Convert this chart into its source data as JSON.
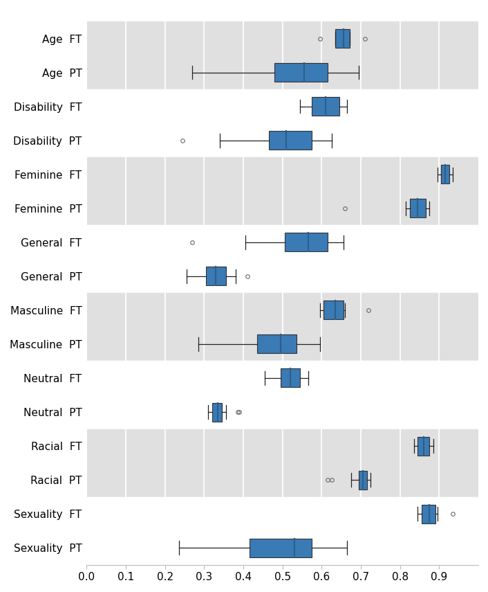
{
  "title": "",
  "xlim": [
    0.0,
    1.0
  ],
  "xticks": [
    0.0,
    0.1,
    0.2,
    0.3,
    0.4,
    0.5,
    0.6,
    0.7,
    0.8,
    0.9
  ],
  "box_color": "#3a7ab5",
  "median_color": "#2c5f8a",
  "whisker_color": "#222222",
  "flier_color": "#666666",
  "bg_shaded": "#e0e0e0",
  "bg_plain": "#ffffff",
  "rows": [
    {
      "label": "Age  FT",
      "q1": 0.635,
      "median": 0.655,
      "q3": 0.672,
      "whislo": 0.635,
      "whishi": 0.672,
      "fliers": [
        0.595,
        0.71
      ],
      "shaded": true
    },
    {
      "label": "Age  PT",
      "q1": 0.48,
      "median": 0.555,
      "q3": 0.615,
      "whislo": 0.27,
      "whishi": 0.695,
      "fliers": [],
      "shaded": true
    },
    {
      "label": "Disability  FT",
      "q1": 0.575,
      "median": 0.61,
      "q3": 0.645,
      "whislo": 0.545,
      "whishi": 0.665,
      "fliers": [],
      "shaded": false
    },
    {
      "label": "Disability  PT",
      "q1": 0.465,
      "median": 0.51,
      "q3": 0.575,
      "whislo": 0.34,
      "whishi": 0.625,
      "fliers": [
        0.245
      ],
      "shaded": false
    },
    {
      "label": "Feminine  FT",
      "q1": 0.905,
      "median": 0.915,
      "q3": 0.925,
      "whislo": 0.895,
      "whishi": 0.935,
      "fliers": [],
      "shaded": true
    },
    {
      "label": "Feminine  PT",
      "q1": 0.825,
      "median": 0.845,
      "q3": 0.865,
      "whislo": 0.815,
      "whishi": 0.875,
      "fliers": [
        0.66
      ],
      "shaded": true
    },
    {
      "label": "General  FT",
      "q1": 0.505,
      "median": 0.565,
      "q3": 0.615,
      "whislo": 0.405,
      "whishi": 0.655,
      "fliers": [
        0.27
      ],
      "shaded": false
    },
    {
      "label": "General  PT",
      "q1": 0.305,
      "median": 0.33,
      "q3": 0.355,
      "whislo": 0.255,
      "whishi": 0.38,
      "fliers": [
        0.41
      ],
      "shaded": false
    },
    {
      "label": "Masculine  FT",
      "q1": 0.605,
      "median": 0.635,
      "q3": 0.655,
      "whislo": 0.595,
      "whishi": 0.66,
      "fliers": [
        0.72
      ],
      "shaded": true
    },
    {
      "label": "Masculine  PT",
      "q1": 0.435,
      "median": 0.495,
      "q3": 0.535,
      "whislo": 0.285,
      "whishi": 0.595,
      "fliers": [],
      "shaded": true
    },
    {
      "label": "Neutral  FT",
      "q1": 0.495,
      "median": 0.52,
      "q3": 0.545,
      "whislo": 0.455,
      "whishi": 0.565,
      "fliers": [],
      "shaded": false
    },
    {
      "label": "Neutral  PT",
      "q1": 0.32,
      "median": 0.335,
      "q3": 0.345,
      "whislo": 0.31,
      "whishi": 0.355,
      "fliers": [
        0.385,
        0.39
      ],
      "shaded": false
    },
    {
      "label": "Racial  FT",
      "q1": 0.845,
      "median": 0.86,
      "q3": 0.875,
      "whislo": 0.835,
      "whishi": 0.885,
      "fliers": [],
      "shaded": true
    },
    {
      "label": "Racial  PT",
      "q1": 0.695,
      "median": 0.705,
      "q3": 0.715,
      "whislo": 0.675,
      "whishi": 0.725,
      "fliers": [
        0.615,
        0.625
      ],
      "shaded": true
    },
    {
      "label": "Sexuality  FT",
      "q1": 0.855,
      "median": 0.875,
      "q3": 0.89,
      "whislo": 0.845,
      "whishi": 0.895,
      "fliers": [
        0.935
      ],
      "shaded": false
    },
    {
      "label": "Sexuality  PT",
      "q1": 0.415,
      "median": 0.53,
      "q3": 0.575,
      "whislo": 0.235,
      "whishi": 0.665,
      "fliers": [],
      "shaded": false
    }
  ]
}
